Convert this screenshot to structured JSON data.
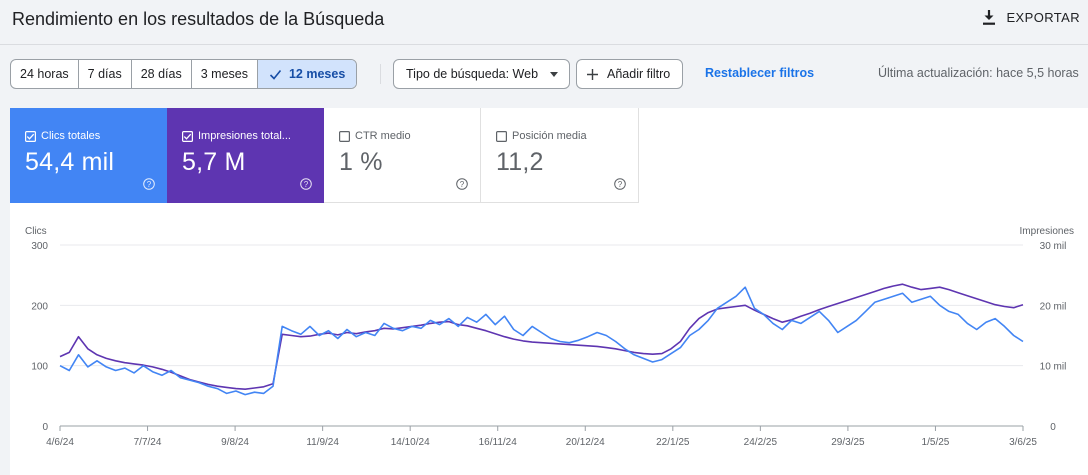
{
  "header": {
    "title": "Rendimiento en los resultados de la Búsqueda",
    "export_label": "EXPORTAR"
  },
  "toolbar": {
    "date_ranges": [
      "24 horas",
      "7 días",
      "28 días",
      "3 meses",
      "12 meses"
    ],
    "active_range": "12 meses",
    "search_type": "Tipo de búsqueda: Web",
    "add_filter": "Añadir filtro",
    "reset_filters": "Restablecer filtros",
    "last_update": "Última actualización: hace 5,5 horas"
  },
  "metrics": {
    "clicks": {
      "label": "Clics totales",
      "value": "54,4 mil",
      "checked": true,
      "color": "#4285f4"
    },
    "impressions": {
      "label": "Impresiones total...",
      "value": "5,7 M",
      "checked": true,
      "color": "#5e35b1"
    },
    "ctr": {
      "label": "CTR medio",
      "value": "1 %",
      "checked": false
    },
    "position": {
      "label": "Posición media",
      "value": "11,2",
      "checked": false
    }
  },
  "chart_data": {
    "type": "line",
    "left_axis_label": "Clics",
    "right_axis_label": "Impresiones",
    "left_ticks": [
      "300",
      "200",
      "100",
      "0"
    ],
    "right_ticks": [
      "30 mil",
      "20 mil",
      "10 mil",
      "0"
    ],
    "ylim_left": [
      0,
      300
    ],
    "ylim_right": [
      0,
      30000
    ],
    "x_tick_labels": [
      "4/6/24",
      "7/7/24",
      "9/8/24",
      "11/9/24",
      "14/10/24",
      "16/11/24",
      "20/12/24",
      "22/1/25",
      "24/2/25",
      "29/3/25",
      "1/5/25",
      "3/6/25"
    ],
    "grid": true,
    "series": [
      {
        "name": "Clics totales",
        "axis": "left",
        "color": "#4285f4",
        "values": [
          100,
          92,
          118,
          98,
          108,
          98,
          92,
          96,
          88,
          100,
          90,
          84,
          92,
          80,
          76,
          72,
          66,
          62,
          54,
          58,
          52,
          56,
          54,
          66,
          165,
          158,
          152,
          165,
          150,
          158,
          145,
          160,
          148,
          155,
          150,
          170,
          162,
          158,
          165,
          162,
          175,
          168,
          178,
          165,
          180,
          172,
          185,
          168,
          182,
          160,
          150,
          165,
          155,
          145,
          140,
          138,
          142,
          148,
          155,
          150,
          140,
          128,
          118,
          112,
          106,
          110,
          120,
          130,
          150,
          160,
          175,
          195,
          205,
          215,
          230,
          195,
          185,
          170,
          160,
          175,
          170,
          180,
          190,
          175,
          155,
          165,
          175,
          190,
          205,
          210,
          215,
          220,
          205,
          210,
          215,
          200,
          190,
          185,
          170,
          160,
          172,
          178,
          165,
          150,
          140
        ]
      },
      {
        "name": "Impresiones totales",
        "axis": "right",
        "color": "#5e35b1",
        "values": [
          11500,
          12200,
          14800,
          12800,
          11800,
          11200,
          10800,
          10500,
          10300,
          10100,
          9800,
          9400,
          8900,
          8300,
          7700,
          7300,
          6900,
          6600,
          6400,
          6200,
          6100,
          6300,
          6500,
          7000,
          15200,
          15000,
          14800,
          14900,
          15200,
          15400,
          15100,
          15500,
          15300,
          15600,
          15800,
          16200,
          16100,
          16300,
          16500,
          16700,
          17000,
          17200,
          17300,
          16800,
          16600,
          16200,
          15800,
          15300,
          14800,
          14400,
          14100,
          13900,
          13800,
          13700,
          13600,
          13500,
          13400,
          13300,
          13200,
          13000,
          12800,
          12500,
          12200,
          12000,
          11900,
          12000,
          12800,
          14000,
          16200,
          17800,
          18800,
          19400,
          19600,
          19800,
          20000,
          19200,
          18500,
          17800,
          17200,
          17600,
          18200,
          18700,
          19300,
          19800,
          20300,
          20800,
          21300,
          21800,
          22300,
          22800,
          23200,
          23500,
          23000,
          22600,
          22800,
          23000,
          22600,
          22100,
          21600,
          21100,
          20600,
          20100,
          19800,
          19600,
          20100
        ]
      }
    ]
  }
}
